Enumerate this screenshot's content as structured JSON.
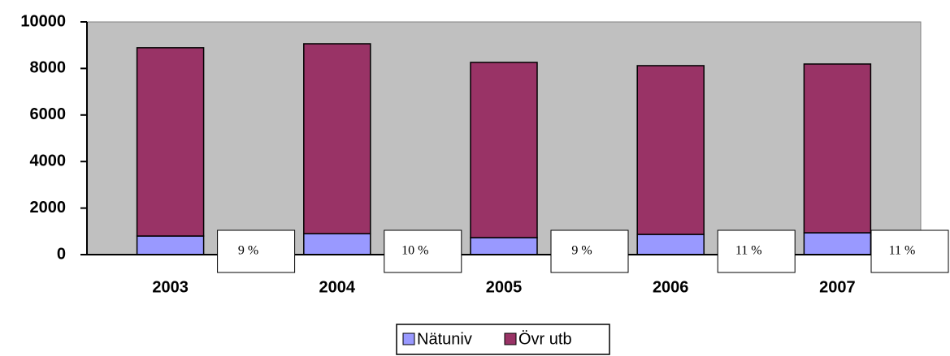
{
  "chart_data": {
    "type": "stacked_bar",
    "categories": [
      "2003",
      "2004",
      "2005",
      "2006",
      "2007"
    ],
    "series": [
      {
        "name": "Nätuniv",
        "color": "#9999ff",
        "values": [
          800,
          900,
          730,
          870,
          940
        ]
      },
      {
        "name": "Övr utb",
        "color": "#993366",
        "values": [
          8090,
          8160,
          7530,
          7250,
          7250
        ]
      }
    ],
    "annotations": [
      "9 %",
      "10 %",
      "9 %",
      "11 %",
      "11 %"
    ],
    "ylim": [
      0,
      10000
    ],
    "yticks": [
      0,
      2000,
      4000,
      6000,
      8000,
      10000
    ],
    "legend": "bottom"
  }
}
